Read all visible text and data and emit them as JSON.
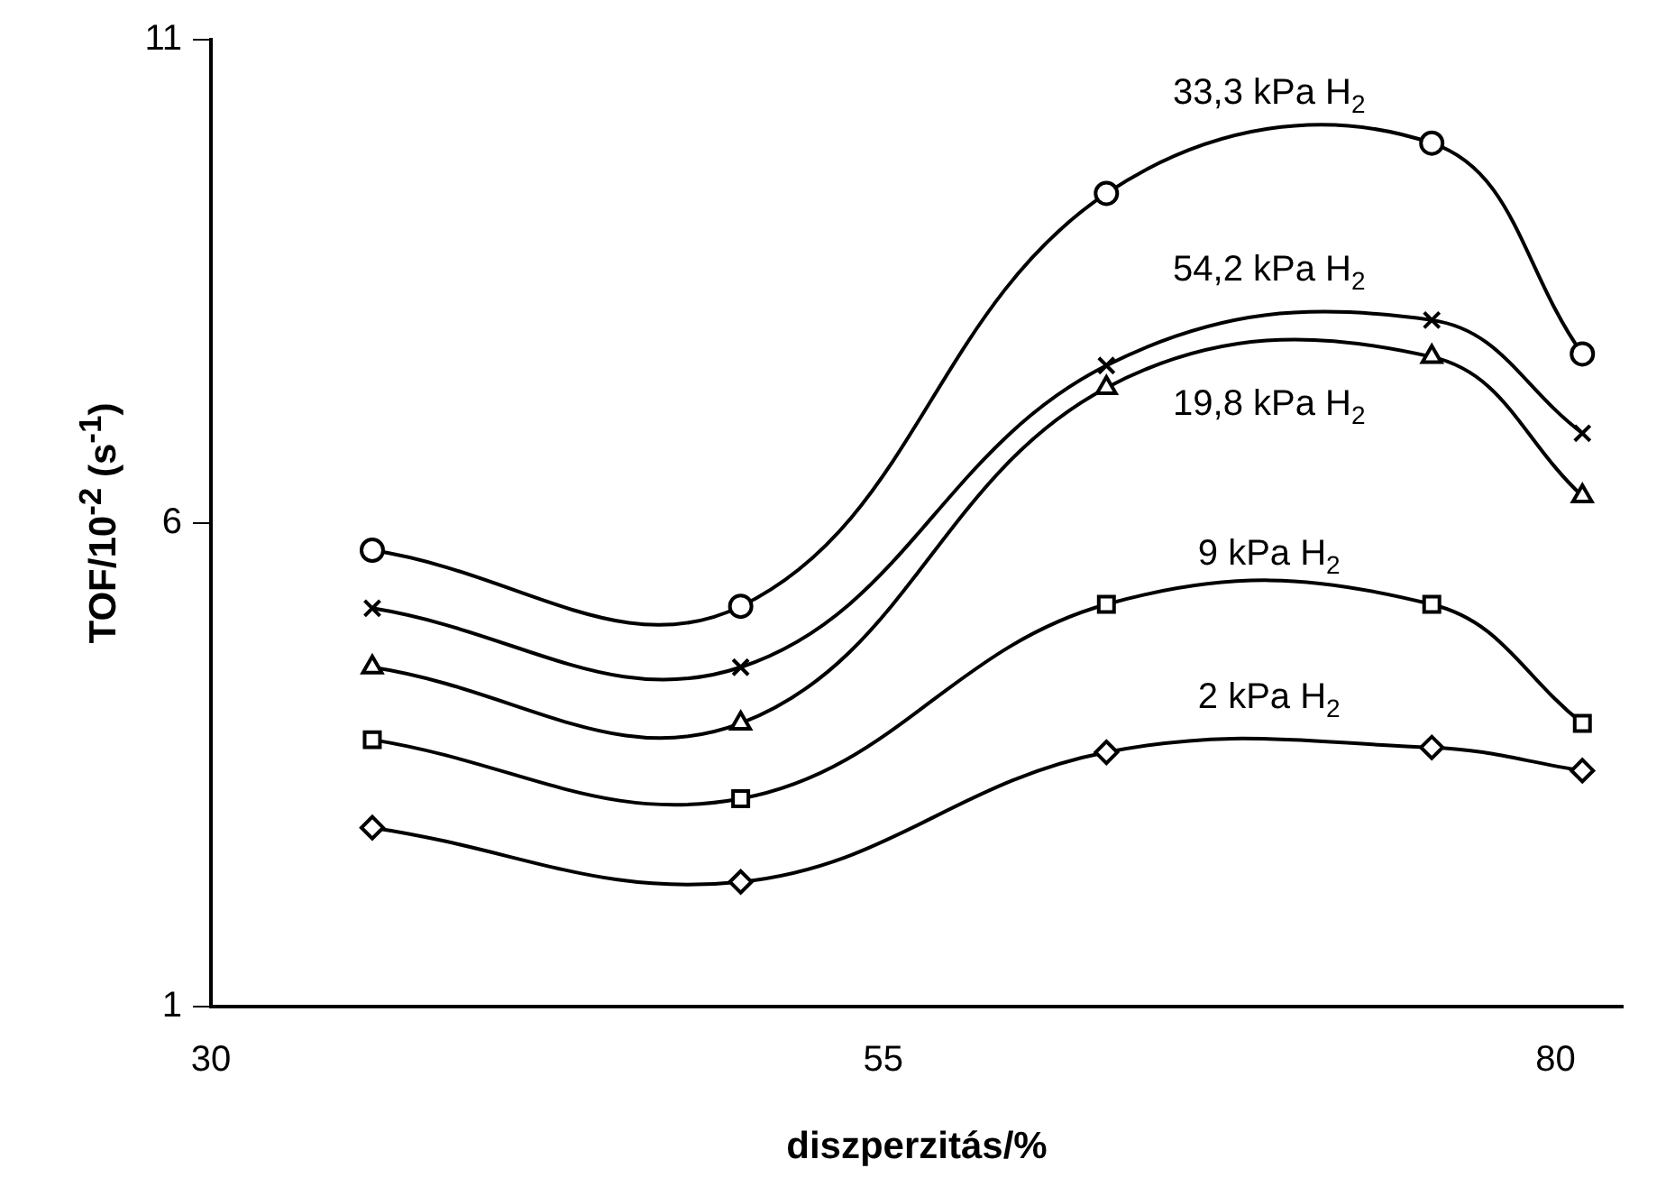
{
  "chart_data": {
    "type": "line",
    "xlabel": "diszperzitás/%",
    "ylabel": "TOF/10$^{-2}$ (s$^{-1}$)",
    "xlim": [
      30,
      82.5
    ],
    "xticks": [
      30,
      55,
      80
    ],
    "ylim": [
      1,
      11
    ],
    "yticks": [
      1,
      6,
      11
    ],
    "grid": false,
    "legend": false,
    "series": [
      {
        "name": "33,3 kPa H$_{2}$",
        "color": "#000000",
        "marker": "circle",
        "x": [
          36,
          49.7,
          63.3,
          75.4,
          81
        ],
        "values": [
          5.72,
          5.14,
          9.41,
          9.93,
          7.75
        ]
      },
      {
        "name": "54,2 kPa H$_{2}$",
        "color": "#000000",
        "marker": "cross",
        "x": [
          36,
          49.7,
          63.3,
          75.4,
          81
        ],
        "values": [
          5.12,
          4.51,
          7.63,
          8.1,
          6.93
        ]
      },
      {
        "name": "19,8 kPa H$_{2}$",
        "color": "#000000",
        "marker": "triangle",
        "x": [
          36,
          49.7,
          63.3,
          75.4,
          81
        ],
        "values": [
          4.51,
          3.93,
          7.4,
          7.72,
          6.28
        ]
      },
      {
        "name": "9 kPa H$_{2}$",
        "color": "#000000",
        "marker": "square",
        "x": [
          36,
          49.7,
          63.3,
          75.4,
          81
        ],
        "values": [
          3.76,
          3.15,
          5.16,
          5.16,
          3.93
        ]
      },
      {
        "name": "2 kPa H$_{2}$",
        "color": "#000000",
        "marker": "diamond",
        "x": [
          36,
          49.7,
          63.3,
          75.4,
          81
        ],
        "values": [
          2.85,
          2.29,
          3.63,
          3.68,
          3.44
        ]
      }
    ]
  }
}
